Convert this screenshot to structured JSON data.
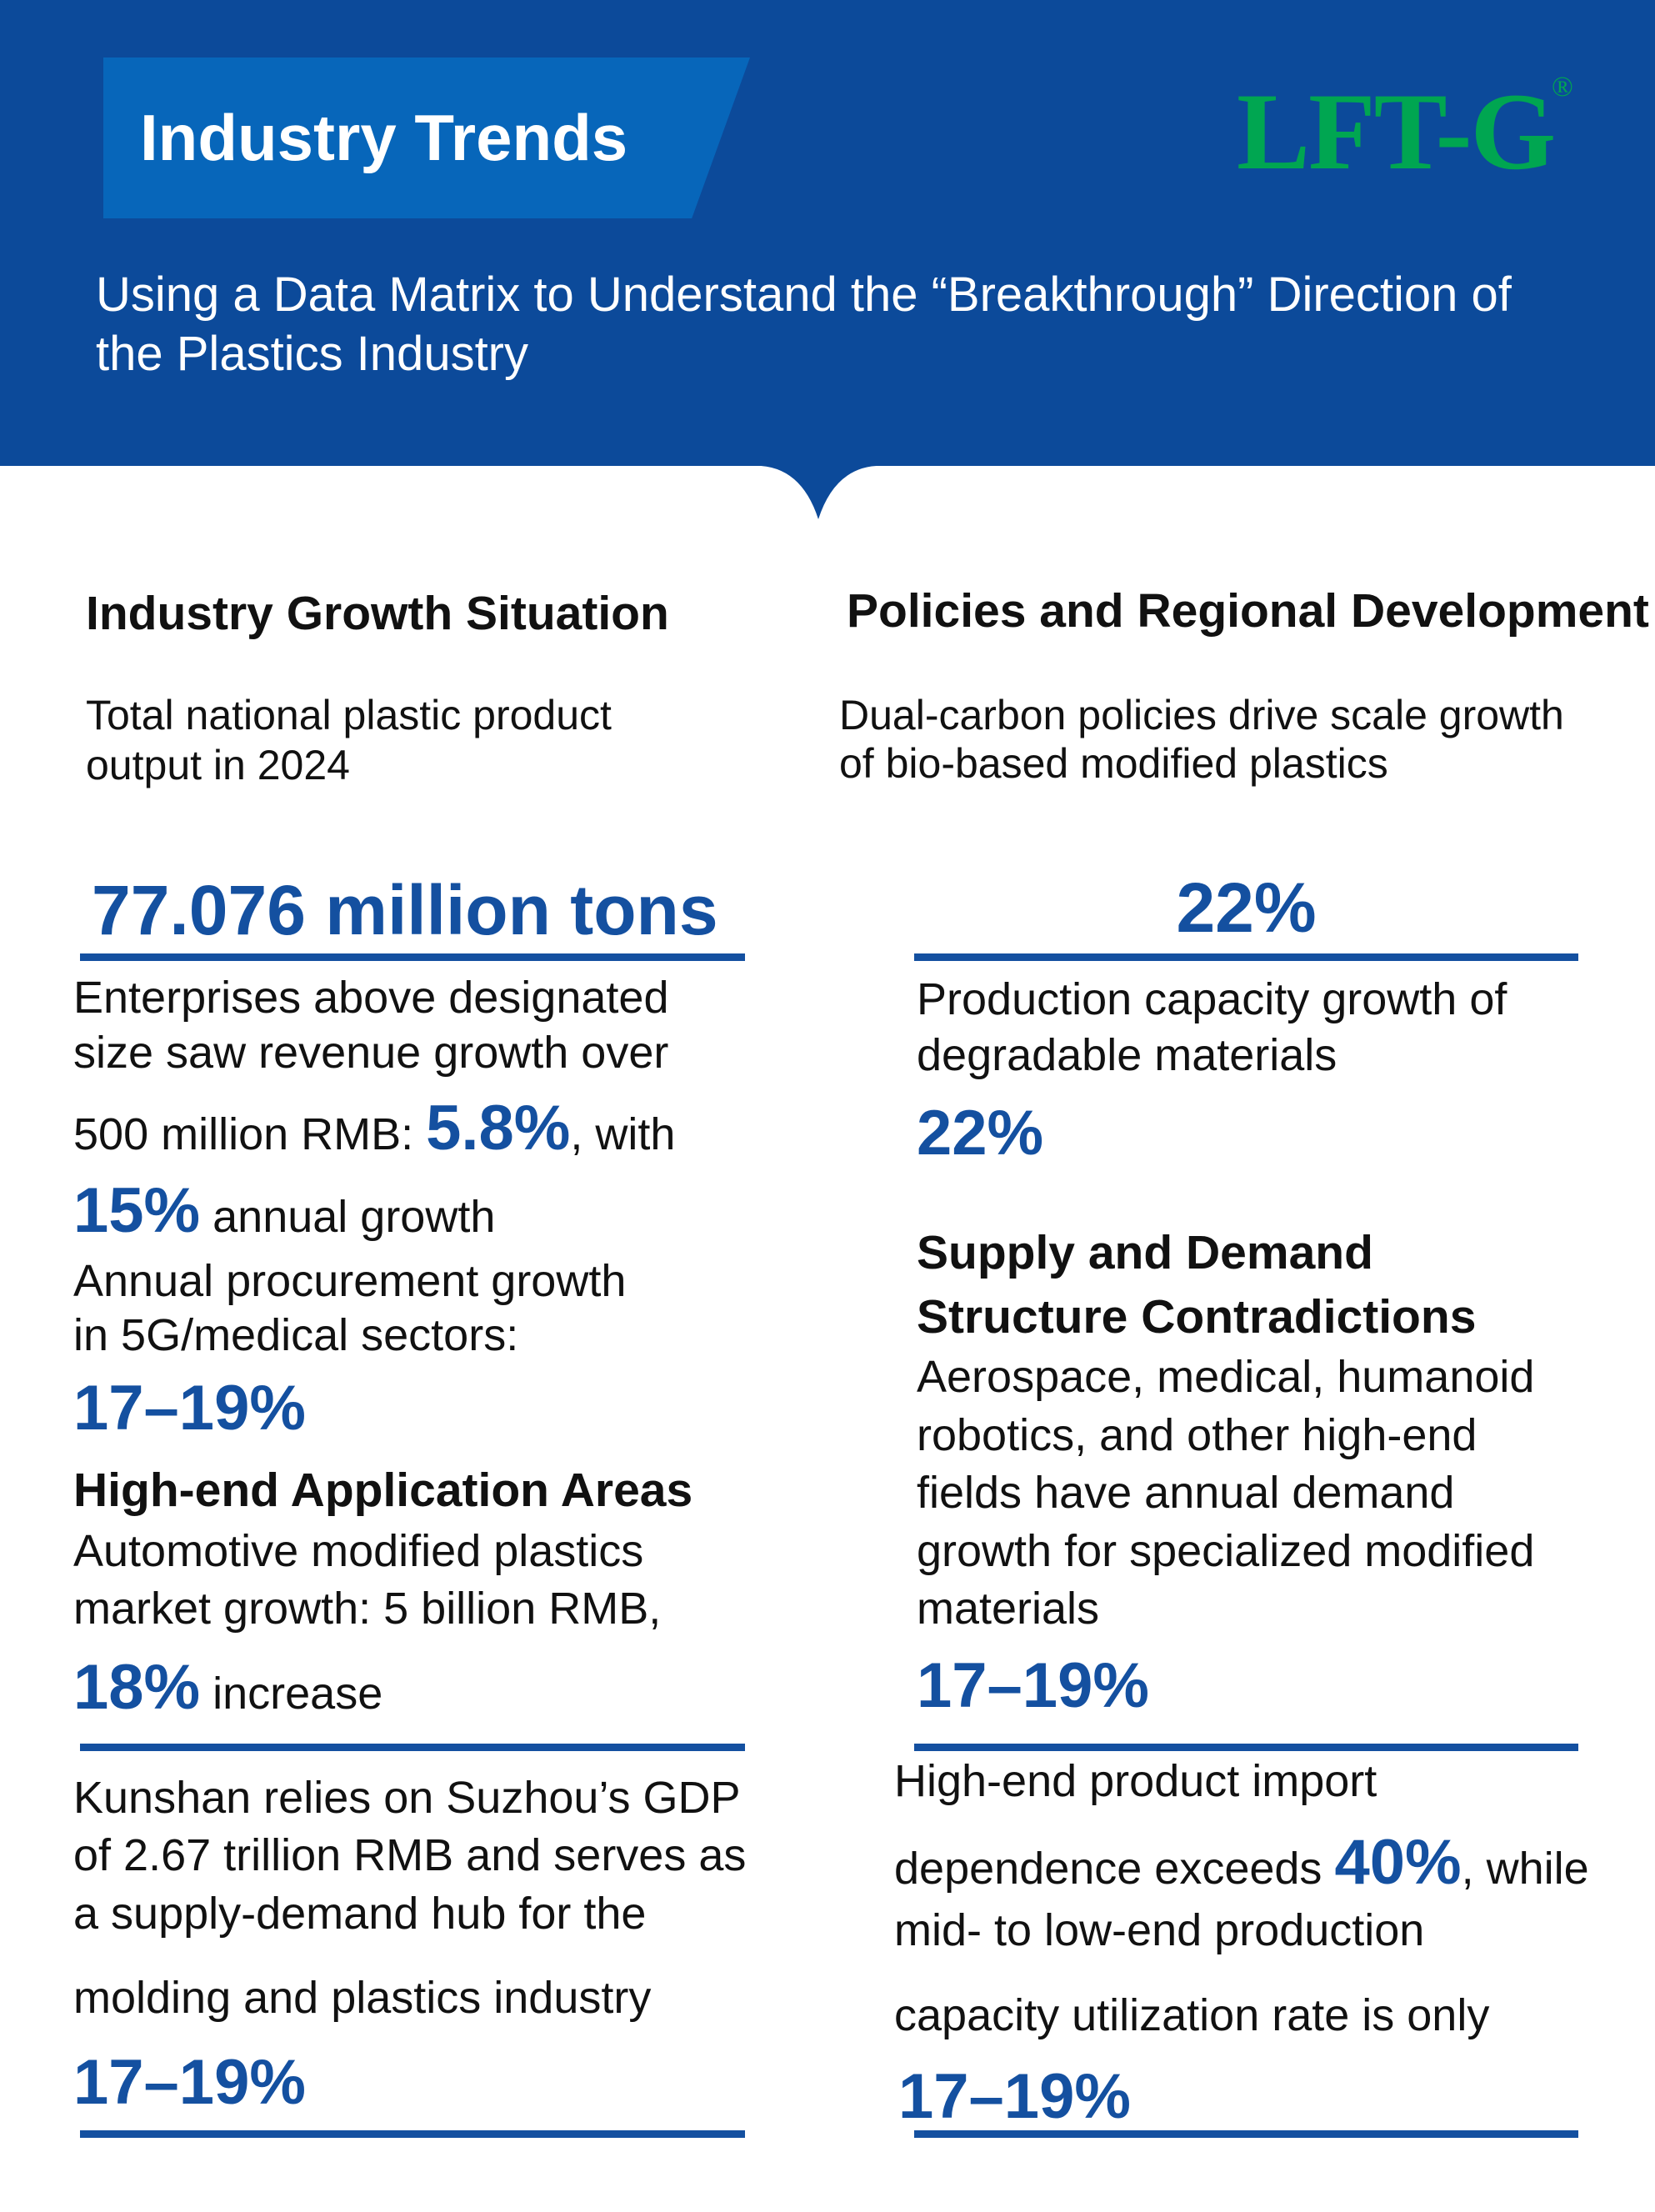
{
  "header": {
    "title": "Industry Trends",
    "logo_text": "LFT-G",
    "logo_mark": "®",
    "subtitle": "Using a Data Matrix to Understand the “Breakthrough” Direction of the Plastics Industry",
    "colors": {
      "background": "#0C4A9A",
      "title_box": "#0766BA",
      "logo": "#00A651",
      "accent": "#1450A0"
    }
  },
  "left": {
    "heading": "Industry Growth Situation",
    "intro": [
      "Total national plastic product",
      "output in 2024"
    ],
    "output_value": "77.076 million tons",
    "revenue_lines": [
      "Enterprises above designated",
      "size saw revenue growth over"
    ],
    "revenue_prefix": "500 million RMB: ",
    "revenue_value": "5.8%",
    "revenue_suffix": ", with",
    "annual_value": "15%",
    "annual_suffix": " annual growth",
    "procurement_lines": [
      "Annual procurement growth",
      "in 5G/medical sectors:"
    ],
    "procurement_value": "17–19%",
    "highend_heading": "High-end Application Areas",
    "auto_lines": [
      "Automotive modified plastics",
      "market growth: 5 billion RMB,"
    ],
    "auto_value": "18%",
    "auto_suffix": " increase",
    "kunshan_lines": [
      "Kunshan relies on Suzhou’s GDP",
      "of 2.67 trillion RMB and serves as",
      "a supply-demand hub for the",
      "molding and plastics industry"
    ],
    "kunshan_value": "17–19%"
  },
  "right": {
    "heading": "Policies and Regional Development",
    "intro": [
      "Dual-carbon policies drive scale growth",
      "of bio-based modified plastics"
    ],
    "bio_value": "22%",
    "degradable_lines": [
      "Production capacity growth of",
      "degradable materials"
    ],
    "degradable_value": "22%",
    "supply_heading": [
      "Supply and Demand",
      "Structure Contradictions"
    ],
    "supply_lines": [
      "Aerospace, medical, humanoid",
      "robotics, and other high-end",
      "fields have annual demand",
      "growth for specialized modified",
      "materials"
    ],
    "supply_value": "17–19%",
    "import_line1": "High-end product import",
    "import_prefix": "dependence exceeds ",
    "import_value": "40%",
    "import_suffix": ", while",
    "import_lines": [
      "mid- to low-end production",
      "capacity utilization rate is only"
    ],
    "import_utilization_value": "17–19%"
  }
}
